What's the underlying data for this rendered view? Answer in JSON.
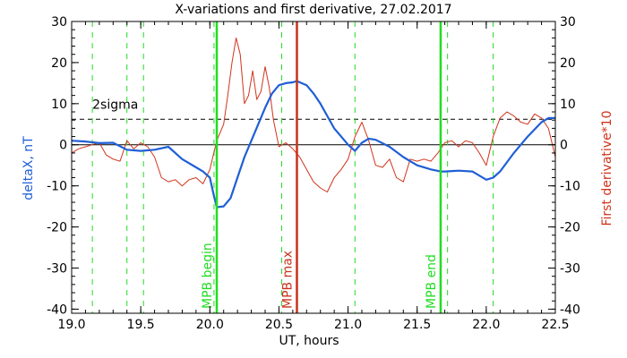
{
  "chart_data": {
    "type": "line",
    "title": "X-variations and first derivative, 27.02.2017",
    "xlabel": "UT, hours",
    "ylabel_left": "deltaX, nT",
    "ylabel_right": "First derivative*10",
    "xlim": [
      19.0,
      22.5
    ],
    "ylim": [
      -41,
      30
    ],
    "x_ticks": [
      19.0,
      19.5,
      20.0,
      20.5,
      21.0,
      21.5,
      22.0,
      22.5
    ],
    "x_tick_labels": [
      "19.0",
      "19.5",
      "20.0",
      "20.5",
      "21.0",
      "21.5",
      "22.0",
      "22.5"
    ],
    "y_ticks": [
      -40,
      -30,
      -20,
      -10,
      0,
      10,
      20,
      30
    ],
    "y_tick_labels": [
      "-40",
      "-30",
      "-20",
      "-10",
      "0",
      "10",
      "20",
      "30"
    ],
    "colors": {
      "deltaX": "#1f5fd6",
      "derivative": "#d0341c",
      "event_green": "#22dd22",
      "event_red": "#c8321c",
      "black": "#000000"
    },
    "sigma_level": 6.2,
    "sigma_label": "2sigma",
    "zero_line": 0,
    "dashed_green_x": [
      19.15,
      19.4,
      19.52,
      20.03,
      20.52,
      21.05,
      21.72,
      22.05
    ],
    "event_lines": [
      {
        "x": 20.05,
        "label": "MPB begin",
        "color": "#22dd22"
      },
      {
        "x": 20.63,
        "label": "MPB max",
        "color": "#c8321c"
      },
      {
        "x": 21.67,
        "label": "MPB end",
        "color": "#22dd22"
      }
    ],
    "series": [
      {
        "name": "deltaX, nT",
        "color": "#1f5fd6",
        "x": [
          19.0,
          19.1,
          19.2,
          19.3,
          19.4,
          19.5,
          19.6,
          19.7,
          19.8,
          19.9,
          19.95,
          20.0,
          20.03,
          20.05,
          20.1,
          20.15,
          20.2,
          20.25,
          20.3,
          20.35,
          20.4,
          20.45,
          20.5,
          20.55,
          20.6,
          20.63,
          20.7,
          20.75,
          20.8,
          20.85,
          20.9,
          20.95,
          21.0,
          21.05,
          21.1,
          21.15,
          21.2,
          21.3,
          21.4,
          21.5,
          21.6,
          21.67,
          21.7,
          21.8,
          21.9,
          21.95,
          22.0,
          22.05,
          22.1,
          22.2,
          22.3,
          22.4,
          22.45,
          22.5
        ],
        "y": [
          1.0,
          0.8,
          0.4,
          0.5,
          -1.2,
          -1.5,
          -1.2,
          -0.5,
          -3.5,
          -5.5,
          -6.5,
          -8.0,
          -12.5,
          -15.2,
          -15.0,
          -13.0,
          -8.0,
          -3.0,
          1.0,
          5.0,
          9.0,
          12.5,
          14.5,
          15.0,
          15.2,
          15.5,
          14.5,
          12.5,
          10.0,
          7.0,
          4.0,
          2.0,
          0.0,
          -1.5,
          0.5,
          1.5,
          1.2,
          -0.5,
          -3.0,
          -5.0,
          -6.0,
          -6.5,
          -6.5,
          -6.3,
          -6.5,
          -7.5,
          -8.5,
          -8.0,
          -6.5,
          -2.0,
          2.0,
          5.5,
          6.5,
          6.5
        ]
      },
      {
        "name": "First derivative*10",
        "color": "#d0341c",
        "x": [
          19.0,
          19.05,
          19.1,
          19.15,
          19.2,
          19.25,
          19.3,
          19.35,
          19.4,
          19.45,
          19.5,
          19.55,
          19.6,
          19.65,
          19.7,
          19.75,
          19.8,
          19.85,
          19.9,
          19.95,
          20.0,
          20.05,
          20.1,
          20.13,
          20.16,
          20.19,
          20.22,
          20.25,
          20.28,
          20.31,
          20.34,
          20.37,
          20.4,
          20.43,
          20.46,
          20.5,
          20.55,
          20.6,
          20.65,
          20.7,
          20.75,
          20.8,
          20.85,
          20.9,
          20.95,
          21.0,
          21.05,
          21.1,
          21.15,
          21.2,
          21.25,
          21.3,
          21.35,
          21.4,
          21.45,
          21.5,
          21.55,
          21.6,
          21.65,
          21.7,
          21.75,
          21.8,
          21.85,
          21.9,
          21.95,
          22.0,
          22.05,
          22.1,
          22.15,
          22.2,
          22.25,
          22.3,
          22.35,
          22.4,
          22.45,
          22.5
        ],
        "y": [
          -2.0,
          -1.0,
          -0.5,
          0.0,
          0.5,
          -2.5,
          -3.5,
          -4.0,
          1.0,
          -1.0,
          0.5,
          -0.5,
          -3.0,
          -8.0,
          -9.0,
          -8.5,
          -10.0,
          -8.5,
          -8.0,
          -9.5,
          -6.0,
          1.0,
          5.0,
          12.0,
          20.0,
          26.0,
          22.0,
          10.0,
          12.0,
          18.0,
          11.0,
          13.0,
          19.0,
          14.0,
          6.0,
          -0.5,
          0.5,
          -1.0,
          -3.0,
          -6.0,
          -9.0,
          -10.5,
          -11.5,
          -8.0,
          -6.0,
          -3.5,
          2.0,
          5.5,
          1.0,
          -5.0,
          -5.5,
          -3.5,
          -8.0,
          -9.0,
          -3.5,
          -4.0,
          -3.5,
          -4.0,
          -2.0,
          0.5,
          1.0,
          -0.5,
          1.0,
          0.5,
          -2.0,
          -5.0,
          2.0,
          6.5,
          8.0,
          7.0,
          5.5,
          5.0,
          7.5,
          6.5,
          4.0,
          -3.0
        ]
      }
    ]
  }
}
